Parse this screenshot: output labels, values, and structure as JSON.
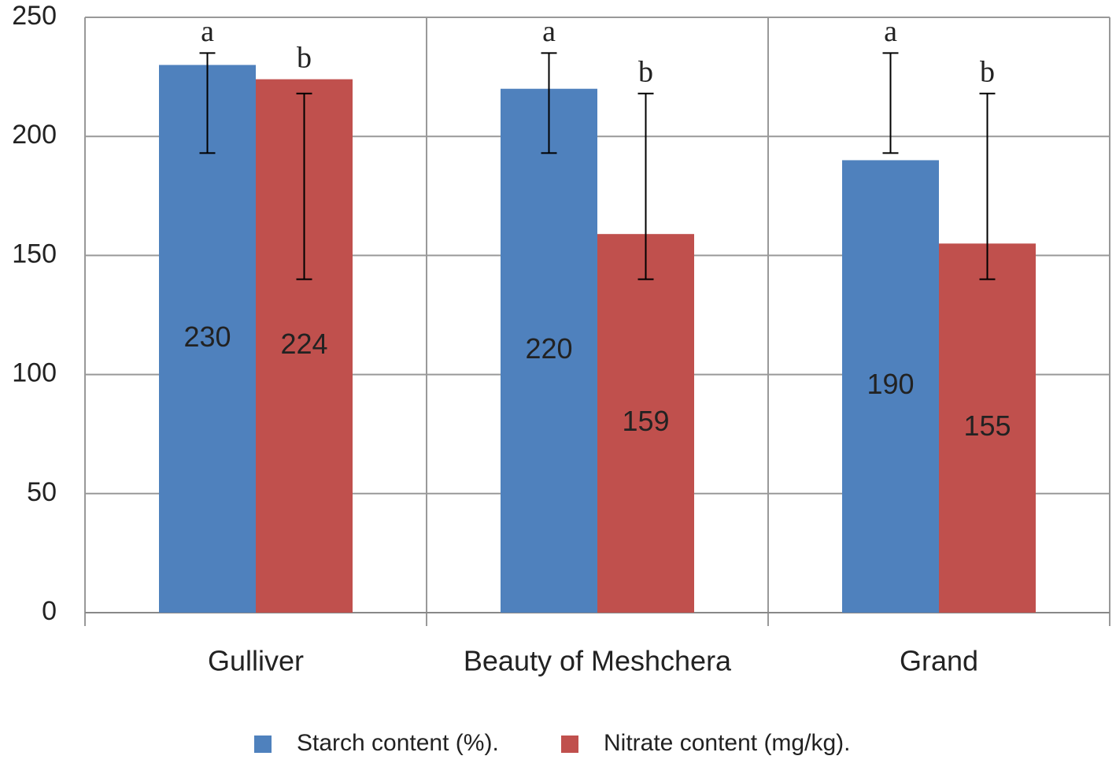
{
  "chart_data": {
    "type": "bar",
    "categories": [
      "Gulliver",
      "Beauty of Meshchera",
      "Grand"
    ],
    "series": [
      {
        "name": "Starch content (%).",
        "color": "#4f81bd",
        "values": [
          230,
          220,
          190
        ],
        "error_low": [
          193,
          193,
          193
        ],
        "error_high": [
          235,
          235,
          235
        ],
        "significance": [
          "a",
          "a",
          "a"
        ]
      },
      {
        "name": "Nitrate content (mg/kg).",
        "color": "#c0504d",
        "values": [
          224,
          159,
          155
        ],
        "error_low": [
          140,
          140,
          140
        ],
        "error_high": [
          218,
          218,
          218
        ],
        "significance": [
          "b",
          "b",
          "b"
        ]
      }
    ],
    "ylim": [
      0,
      250
    ],
    "yticks": [
      0,
      50,
      100,
      150,
      200,
      250
    ],
    "grid": true,
    "legend": "bottom",
    "value_labels_inside": true
  }
}
